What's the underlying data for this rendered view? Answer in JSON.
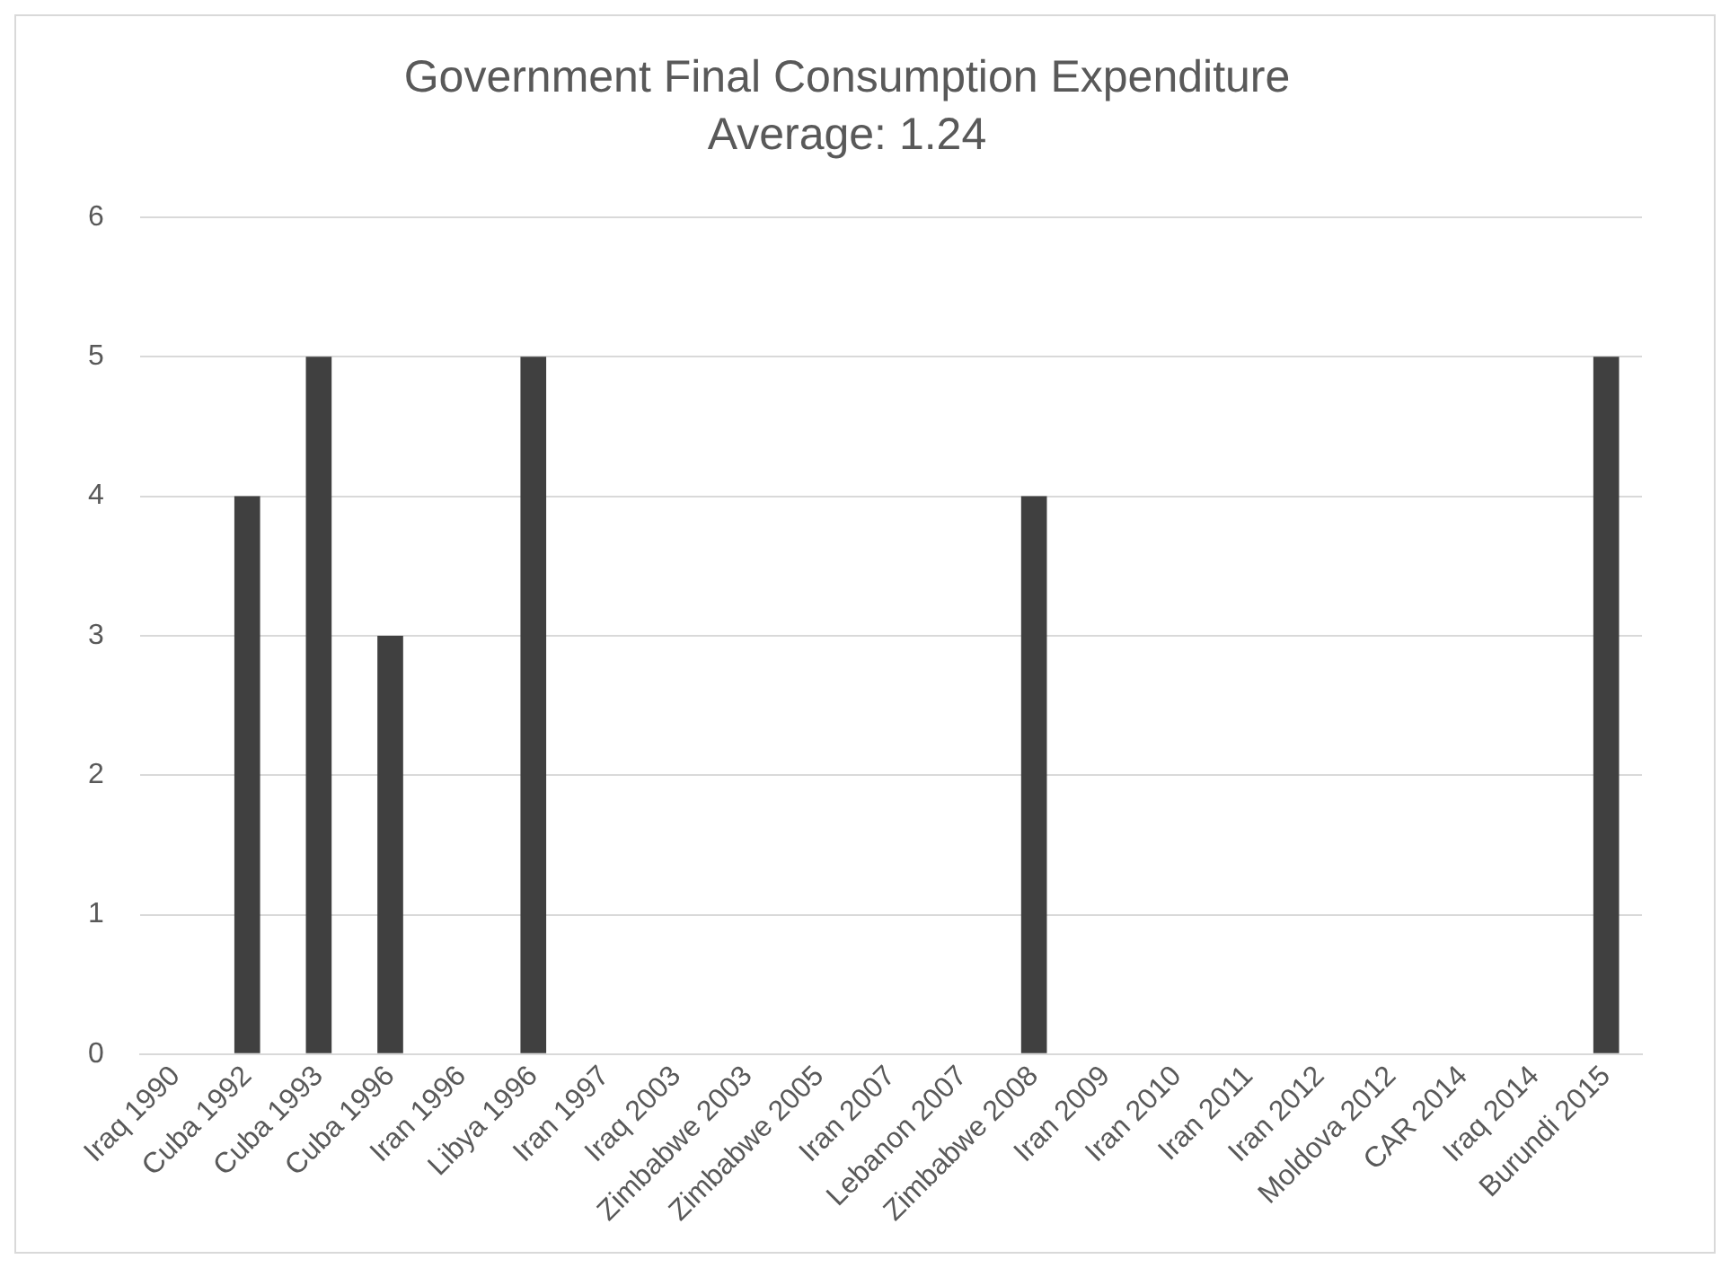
{
  "chart_data": {
    "type": "bar",
    "title": "Government Final Consumption Expenditure",
    "subtitle": "Average: 1.24",
    "categories": [
      "Iraq 1990",
      "Cuba 1992",
      "Cuba 1993",
      "Cuba 1996",
      "Iran 1996",
      "Libya 1996",
      "Iran 1997",
      "Iraq 2003",
      "Zimbabwe 2003",
      "Zimbabwe 2005",
      "Iran 2007",
      "Lebanon 2007",
      "Zimbabwe 2008",
      "Iran 2009",
      "Iran 2010",
      "Iran 2011",
      "Iran 2012",
      "Moldova 2012",
      "CAR 2014",
      "Iraq 2014",
      "Burundi 2015"
    ],
    "values": [
      0,
      4,
      5,
      3,
      0,
      5,
      0,
      0,
      0,
      0,
      0,
      0,
      4,
      0,
      0,
      0,
      0,
      0,
      0,
      0,
      5
    ],
    "color": "#404040",
    "ylim": [
      0,
      6
    ],
    "yticks": [
      0,
      1,
      2,
      3,
      4,
      5,
      6
    ],
    "grid": "y"
  }
}
